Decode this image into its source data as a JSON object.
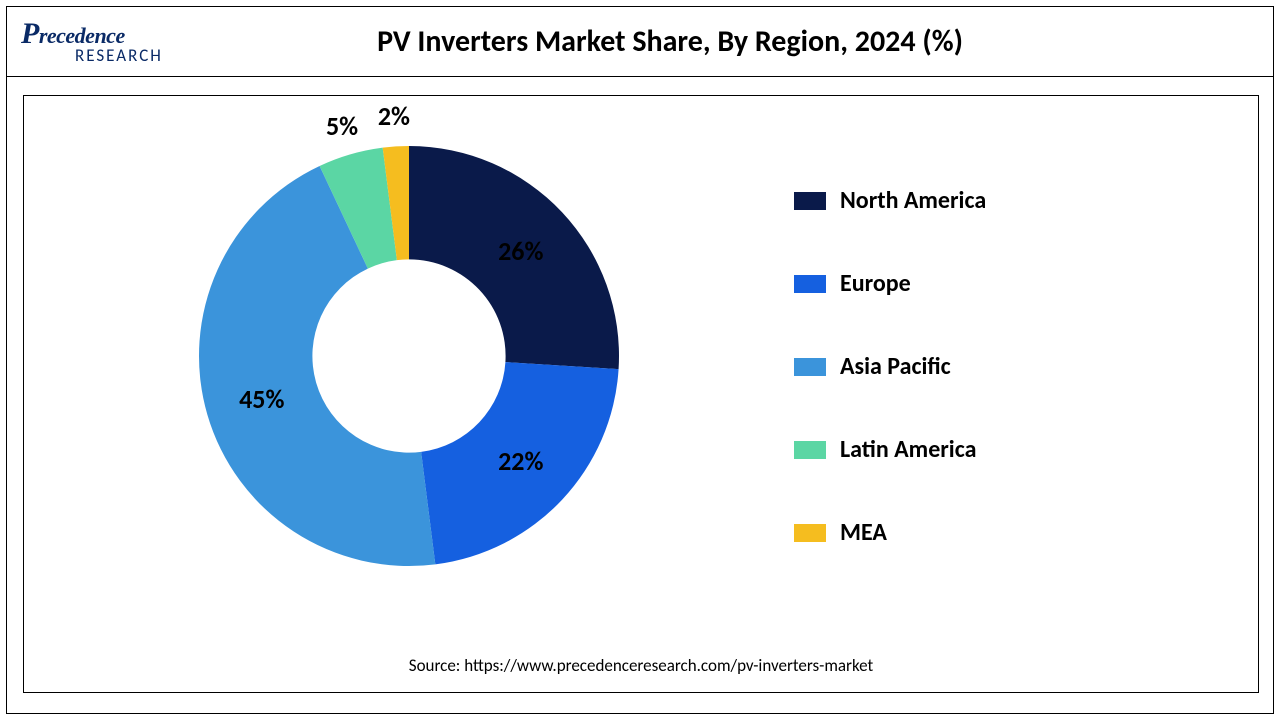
{
  "logo": {
    "top": "Precedence",
    "bottom": "RESEARCH"
  },
  "chart": {
    "type": "donut",
    "title": "PV Inverters Market Share, By Region, 2024 (%)",
    "source": "Source: https://www.precedenceresearch.com/pv-inverters-market",
    "background_color": "#ffffff",
    "border_color": "#000000",
    "title_fontsize": 30,
    "label_fontsize": 26,
    "legend_fontsize": 24,
    "source_fontsize": 17,
    "inner_radius_ratio": 0.46,
    "outer_radius": 210,
    "start_angle_deg": 0,
    "segments": [
      {
        "label": "North America",
        "value": 26,
        "color": "#0a1a4a",
        "display": "26%"
      },
      {
        "label": "Europe",
        "value": 22,
        "color": "#1560e0",
        "display": "22%"
      },
      {
        "label": "Asia Pacific",
        "value": 45,
        "color": "#3b94db",
        "display": "45%"
      },
      {
        "label": "Latin America",
        "value": 5,
        "color": "#5bd6a4",
        "display": "5%"
      },
      {
        "label": "MEA",
        "value": 2,
        "color": "#f5bd1f",
        "display": "2%"
      }
    ],
    "legend_swatch": {
      "w": 32,
      "h": 18
    }
  }
}
